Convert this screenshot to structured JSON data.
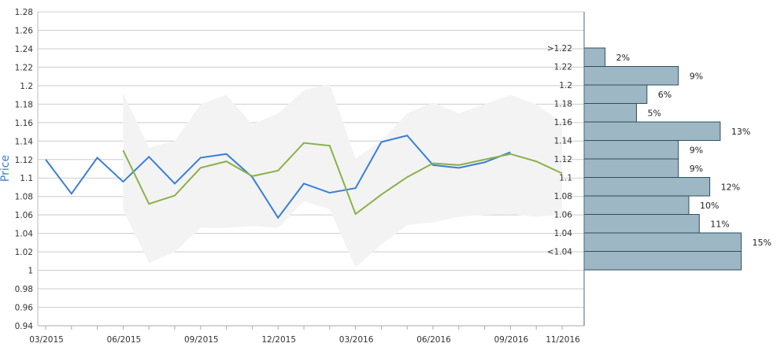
{
  "chart_data": {
    "type": "line",
    "ylabel": "Price",
    "ylim": [
      0.94,
      1.28
    ],
    "yticks": [
      "0.94",
      "0.96",
      "0.98",
      "1",
      "1.02",
      "1.04",
      "1.06",
      "1.08",
      "1.1",
      "1.12",
      "1.14",
      "1.16",
      "1.18",
      "1.2",
      "1.22",
      "1.24",
      "1.26",
      "1.28"
    ],
    "xticks": [
      "03/2015",
      "06/2015",
      "09/2015",
      "12/2015",
      "03/2016",
      "06/2016",
      "09/2016",
      "11/2016"
    ],
    "grid": true,
    "series": [
      {
        "color": "#3a7fd5",
        "x": [
          "03/2015",
          "04/2015",
          "05/2015",
          "06/2015",
          "07/2015",
          "08/2015",
          "09/2015",
          "10/2015",
          "11/2015",
          "12/2015",
          "01/2016",
          "02/2016",
          "03/2016",
          "04/2016",
          "05/2016",
          "06/2016",
          "07/2016",
          "08/2016",
          "09/2016"
        ],
        "values": [
          1.12,
          1.083,
          1.122,
          1.096,
          1.123,
          1.094,
          1.122,
          1.126,
          1.101,
          1.057,
          1.094,
          1.084,
          1.089,
          1.139,
          1.146,
          1.114,
          1.111,
          1.117,
          1.128
        ]
      },
      {
        "color": "#8ab14a",
        "x": [
          "06/2015",
          "07/2015",
          "08/2015",
          "09/2015",
          "10/2015",
          "11/2015",
          "12/2015",
          "01/2016",
          "02/2016",
          "03/2016",
          "04/2016",
          "05/2016",
          "06/2016",
          "07/2016",
          "08/2016",
          "09/2016",
          "10/2016",
          "11/2016"
        ],
        "values": [
          1.13,
          1.072,
          1.081,
          1.111,
          1.118,
          1.102,
          1.108,
          1.138,
          1.135,
          1.061,
          1.082,
          1.101,
          1.116,
          1.114,
          1.12,
          1.126,
          1.118,
          1.105
        ]
      }
    ],
    "band": {
      "color": "#f3f3f3",
      "x": [
        "06/2015",
        "07/2015",
        "08/2015",
        "09/2015",
        "10/2015",
        "11/2015",
        "12/2015",
        "01/2016",
        "02/2016",
        "03/2016",
        "04/2016",
        "05/2016",
        "06/2016",
        "07/2016",
        "08/2016",
        "09/2016",
        "10/2016",
        "11/2016"
      ],
      "upper": [
        1.192,
        1.133,
        1.14,
        1.18,
        1.19,
        1.158,
        1.17,
        1.195,
        1.202,
        1.121,
        1.14,
        1.17,
        1.182,
        1.17,
        1.18,
        1.19,
        1.18,
        1.16
      ],
      "lower": [
        1.065,
        1.008,
        1.02,
        1.046,
        1.046,
        1.048,
        1.046,
        1.075,
        1.066,
        1.003,
        1.028,
        1.049,
        1.052,
        1.058,
        1.06,
        1.061,
        1.058,
        1.06
      ]
    },
    "distribution": {
      "color": "#9db7c4",
      "bins": [
        {
          "label": ">1.22",
          "pct": 2,
          "pct_label": "2%"
        },
        {
          "label": "1.22",
          "pct": 9,
          "pct_label": "9%"
        },
        {
          "label": "1.2",
          "pct": 6,
          "pct_label": "6%"
        },
        {
          "label": "1.18",
          "pct": 5,
          "pct_label": "5%"
        },
        {
          "label": "1.16",
          "pct": 13,
          "pct_label": "13%"
        },
        {
          "label": "1.14",
          "pct": 9,
          "pct_label": "9%"
        },
        {
          "label": "1.12",
          "pct": 9,
          "pct_label": "9%"
        },
        {
          "label": "1.1",
          "pct": 12,
          "pct_label": "12%"
        },
        {
          "label": "1.08",
          "pct": 10,
          "pct_label": "10%"
        },
        {
          "label": "1.06",
          "pct": 11,
          "pct_label": "11%"
        },
        {
          "label": "1.04",
          "pct": 15,
          "pct_label": "15%"
        },
        {
          "label": "<1.04",
          "pct": 15,
          "pct_label": ""
        }
      ]
    }
  }
}
